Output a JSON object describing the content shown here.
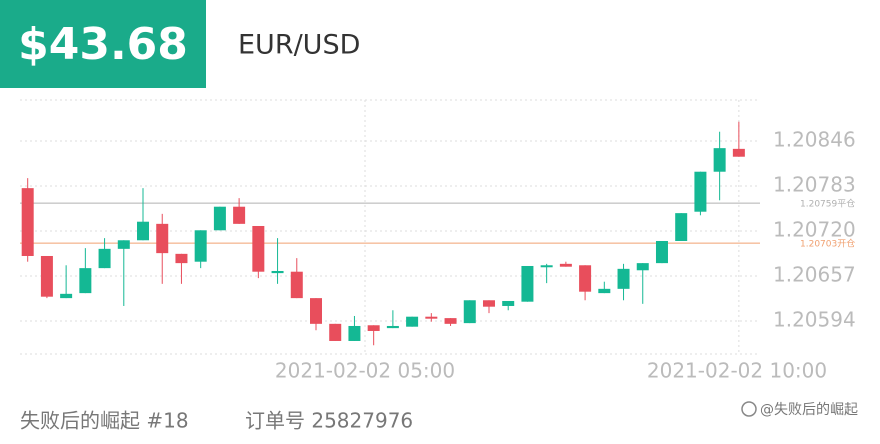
{
  "header": {
    "price": "$43.68",
    "pair": "EUR/USD"
  },
  "chart_data": {
    "type": "candlestick",
    "open": [
      1.2078,
      1.20685,
      1.20626,
      1.20633,
      1.20668,
      1.20695,
      1.20707,
      1.2073,
      1.20688,
      1.20677,
      1.20721,
      1.20754,
      1.20727,
      1.20661,
      1.20663,
      1.20626,
      1.2059,
      1.20566,
      1.20588,
      1.20584,
      1.20586,
      1.206,
      1.20598,
      1.20591,
      1.20623,
      1.20615,
      1.20621,
      1.2067,
      1.20674,
      1.20672,
      1.20633,
      1.20639,
      1.20665,
      1.20675,
      1.20706,
      1.20747,
      1.20803,
      1.20835
    ],
    "high": [
      1.20794,
      1.20685,
      1.20672,
      1.20696,
      1.2071,
      1.20707,
      1.2078,
      1.20744,
      1.20688,
      1.20721,
      1.20754,
      1.20766,
      1.20727,
      1.2071,
      1.20682,
      1.20626,
      1.2059,
      1.20601,
      1.20588,
      1.20609,
      1.206,
      1.20605,
      1.20598,
      1.20623,
      1.20623,
      1.20622,
      1.20671,
      1.20674,
      1.20677,
      1.20672,
      1.20649,
      1.20674,
      1.20675,
      1.20706,
      1.20745,
      1.20803,
      1.20859,
      1.20873
    ],
    "low": [
      1.20677,
      1.20626,
      1.20626,
      1.20633,
      1.20668,
      1.20615,
      1.20707,
      1.20646,
      1.20646,
      1.20668,
      1.20721,
      1.2073,
      1.20654,
      1.20646,
      1.20626,
      1.20581,
      1.20566,
      1.20566,
      1.2056,
      1.20584,
      1.20586,
      1.20593,
      1.20587,
      1.20591,
      1.20605,
      1.20609,
      1.20621,
      1.20647,
      1.2067,
      1.20623,
      1.20633,
      1.20623,
      1.20618,
      1.20675,
      1.20706,
      1.20742,
      1.20763,
      1.20824
    ],
    "close": [
      1.20685,
      1.20628,
      1.20632,
      1.20668,
      1.20695,
      1.20707,
      1.20733,
      1.20689,
      1.20675,
      1.20721,
      1.20754,
      1.2073,
      1.20663,
      1.20664,
      1.20626,
      1.2059,
      1.20566,
      1.20587,
      1.2058,
      1.20587,
      1.206,
      1.20598,
      1.2059,
      1.20623,
      1.20614,
      1.20622,
      1.20671,
      1.20672,
      1.2067,
      1.20635,
      1.20639,
      1.20667,
      1.20675,
      1.20706,
      1.20745,
      1.20803,
      1.20836,
      1.20824
    ],
    "up_color": "#14b894",
    "down_color": "#e84e5c",
    "xlim": [
      -0.4,
      38.1
    ],
    "xticks": [
      {
        "value": 17.55,
        "label": "2021-02-02 05:00"
      },
      {
        "value": 37,
        "label": "2021-02-02 10:00"
      }
    ],
    "ylim": [
      1.2055,
      1.2091
    ],
    "yticks": [
      1.20846,
      1.20783,
      {
        "value": 1.2072,
        "label": "1.20720"
      },
      1.20657,
      1.20594
    ],
    "grid": true,
    "reference_lines": [
      {
        "value": 1.20759,
        "label": "1.20759平仓",
        "color": "#b0b0b0"
      },
      {
        "value": 1.20703,
        "label": "1.20703开仓",
        "color": "#f0a070"
      }
    ]
  },
  "footer": {
    "name": "失败后的崛起 #18",
    "order": "订单号 25827976",
    "watermark": "@失败后的崛起"
  }
}
